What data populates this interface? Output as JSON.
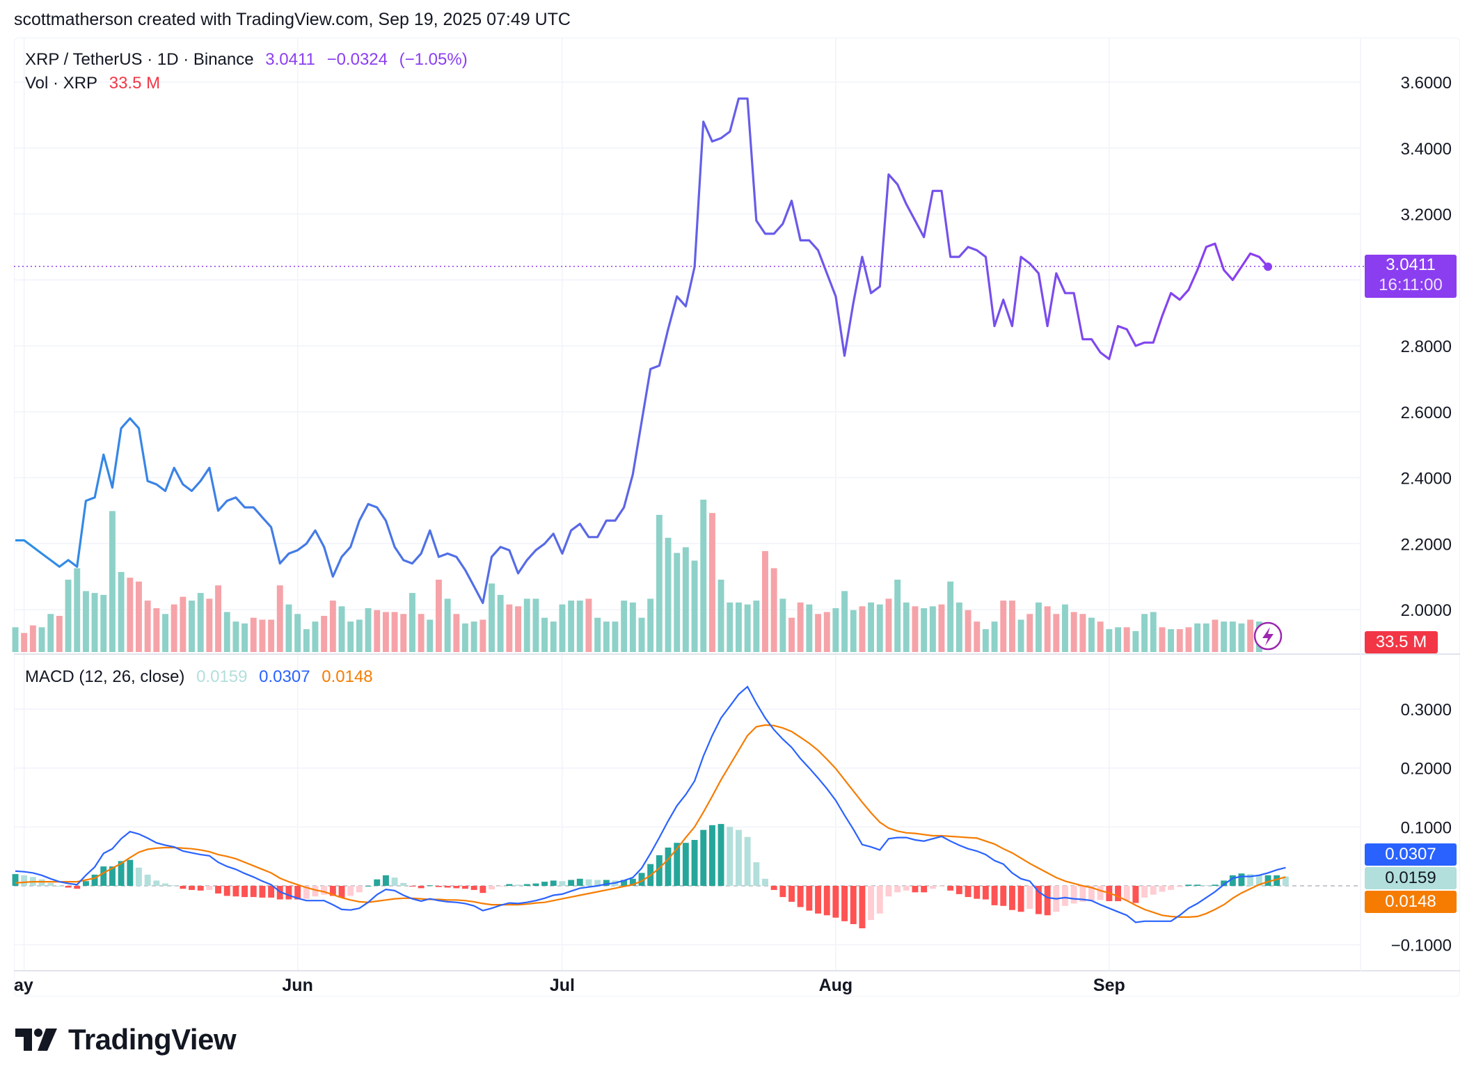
{
  "header": {
    "attribution": "scottmatherson created with TradingView.com, Sep 19, 2025 07:49 UTC"
  },
  "legend": {
    "symbol": "XRP / TetherUS · 1D · Binance",
    "last": "3.0411",
    "change": "−0.0324",
    "change_pct": "(−1.05%)",
    "vol_label": "Vol · XRP",
    "vol_value": "33.5 M",
    "macd_label": "MACD (12, 26, close)",
    "macd_hist": "0.0159",
    "macd_line": "0.0307",
    "macd_signal": "0.0148"
  },
  "price_axis": {
    "ticks": [
      "3.6000",
      "3.4000",
      "3.2000",
      "3.0000",
      "2.8000",
      "2.6000",
      "2.4000",
      "2.2000",
      "2.0000"
    ]
  },
  "macd_axis": {
    "ticks": [
      "0.3000",
      "0.2000",
      "0.1000",
      "−0.1000"
    ]
  },
  "time_axis": {
    "labels": [
      "ay",
      "Jun",
      "Jul",
      "Aug",
      "Sep"
    ]
  },
  "tags": {
    "price": "3.0411",
    "countdown": "16:11:00",
    "volume": "33.5 M",
    "macd_line": "0.0307",
    "macd_hist": "0.0159",
    "macd_signal": "0.0148"
  },
  "colors": {
    "price_line_start": "#2d8ee6",
    "price_line_end": "#8b3ef0",
    "vol_up": "#8ed1c8",
    "vol_down": "#f5a3a8",
    "macd_line": "#2962ff",
    "signal_line": "#f57c00",
    "hist_pos_strong": "#26a69a",
    "hist_pos_weak": "#b2dfdb",
    "hist_neg_strong": "#ff5252",
    "hist_neg_weak": "#ffcdd2",
    "price_tag": "#8b3ef0",
    "vol_tag": "#f23645"
  },
  "logo": {
    "text": "TradingView"
  },
  "chart_data": [
    {
      "type": "line",
      "title": "XRP / TetherUS · 1D · Binance",
      "x_start": "2025-04-30",
      "x_end": "2025-09-19",
      "y": [
        2.21,
        2.21,
        2.19,
        2.17,
        2.15,
        2.13,
        2.15,
        2.13,
        2.33,
        2.34,
        2.47,
        2.37,
        2.55,
        2.58,
        2.55,
        2.39,
        2.38,
        2.36,
        2.43,
        2.38,
        2.36,
        2.39,
        2.43,
        2.3,
        2.33,
        2.34,
        2.31,
        2.31,
        2.28,
        2.25,
        2.14,
        2.17,
        2.18,
        2.2,
        2.24,
        2.19,
        2.1,
        2.16,
        2.19,
        2.27,
        2.32,
        2.31,
        2.27,
        2.19,
        2.15,
        2.14,
        2.17,
        2.24,
        2.16,
        2.17,
        2.16,
        2.12,
        2.07,
        2.02,
        2.16,
        2.19,
        2.18,
        2.11,
        2.15,
        2.18,
        2.2,
        2.23,
        2.17,
        2.24,
        2.26,
        2.22,
        2.22,
        2.27,
        2.27,
        2.31,
        2.41,
        2.57,
        2.73,
        2.74,
        2.85,
        2.95,
        2.92,
        3.04,
        3.48,
        3.42,
        3.43,
        3.45,
        3.55,
        3.55,
        3.18,
        3.14,
        3.14,
        3.17,
        3.24,
        3.12,
        3.12,
        3.09,
        3.02,
        2.95,
        2.77,
        2.93,
        3.07,
        2.96,
        2.98,
        3.32,
        3.29,
        3.23,
        3.18,
        3.13,
        3.27,
        3.27,
        3.07,
        3.07,
        3.1,
        3.09,
        3.07,
        2.86,
        2.94,
        2.86,
        3.07,
        3.05,
        3.02,
        2.86,
        3.02,
        2.96,
        2.96,
        2.82,
        2.82,
        2.78,
        2.76,
        2.86,
        2.85,
        2.8,
        2.81,
        2.81,
        2.89,
        2.96,
        2.94,
        2.97,
        3.03,
        3.1,
        3.11,
        3.03,
        3.0,
        3.04,
        3.08,
        3.07,
        3.04
      ],
      "ylim": [
        1.86,
        3.7
      ],
      "y_ticks": [
        2.0,
        2.2,
        2.4,
        2.6,
        2.8,
        3.0,
        3.2,
        3.4,
        3.6
      ],
      "last": 3.0411
    },
    {
      "type": "bar",
      "title": "Vol · XRP",
      "values": [
        1.3,
        1.0,
        1.4,
        1.3,
        2.0,
        1.9,
        3.8,
        4.4,
        3.2,
        3.1,
        3.0,
        7.4,
        4.2,
        3.9,
        3.7,
        2.7,
        2.3,
        2.0,
        2.5,
        2.9,
        2.7,
        3.1,
        2.8,
        3.5,
        2.1,
        1.6,
        1.5,
        1.8,
        1.7,
        1.7,
        3.5,
        2.5,
        2.0,
        1.2,
        1.6,
        1.9,
        2.7,
        2.4,
        1.6,
        1.7,
        2.3,
        2.2,
        2.1,
        2.1,
        2.0,
        3.1,
        2.0,
        1.7,
        3.8,
        2.8,
        2.0,
        1.5,
        1.6,
        1.7,
        3.6,
        3.0,
        2.5,
        2.4,
        2.8,
        2.8,
        1.8,
        1.6,
        2.5,
        2.7,
        2.7,
        2.8,
        1.8,
        1.6,
        1.6,
        2.7,
        2.6,
        1.8,
        2.8,
        7.2,
        6.0,
        5.2,
        5.5,
        4.8,
        8.0,
        7.3,
        3.8,
        2.6,
        2.6,
        2.5,
        2.7,
        5.3,
        4.4,
        2.8,
        1.8,
        2.6,
        2.5,
        2.0,
        2.1,
        2.3,
        3.2,
        2.2,
        2.4,
        2.6,
        2.5,
        2.8,
        3.8,
        2.6,
        2.4,
        2.3,
        2.4,
        2.5,
        3.7,
        2.6,
        2.2,
        1.6,
        1.2,
        1.6,
        2.7,
        2.7,
        1.7,
        2.0,
        2.6,
        2.4,
        2.0,
        2.5,
        2.1,
        2.0,
        1.8,
        1.6,
        1.2,
        1.3,
        1.3,
        1.1,
        2.0,
        2.1,
        1.3,
        1.2,
        1.2,
        1.3,
        1.5,
        1.5,
        1.7,
        1.6,
        1.6,
        1.5,
        1.7,
        1.6
      ],
      "direction": [
        "up",
        "down",
        "down",
        "up",
        "up",
        "down",
        "up",
        "up",
        "up",
        "up",
        "up",
        "up",
        "up",
        "down",
        "down",
        "down",
        "down",
        "up",
        "down",
        "down",
        "up",
        "up",
        "down",
        "down",
        "up",
        "up",
        "up",
        "down",
        "down",
        "down",
        "down",
        "up",
        "up",
        "up",
        "up",
        "down",
        "down",
        "up",
        "up",
        "up",
        "up",
        "down",
        "down",
        "down",
        "down",
        "up",
        "down",
        "up",
        "down",
        "up",
        "down",
        "up",
        "up",
        "down",
        "up",
        "up",
        "down",
        "down",
        "up",
        "up",
        "up",
        "up",
        "up",
        "up",
        "up",
        "down",
        "up",
        "up",
        "up",
        "up",
        "up",
        "up",
        "up",
        "up",
        "up",
        "up",
        "up",
        "up",
        "up",
        "down",
        "up",
        "up",
        "up",
        "up",
        "up",
        "down",
        "down",
        "up",
        "down",
        "down",
        "up",
        "down",
        "down",
        "up",
        "up",
        "up",
        "down",
        "up",
        "up",
        "down",
        "up",
        "up",
        "down",
        "up",
        "up",
        "down",
        "up",
        "up",
        "down",
        "down",
        "up",
        "up",
        "down",
        "down",
        "up",
        "down",
        "up",
        "down",
        "down",
        "up",
        "down",
        "down",
        "up",
        "down",
        "up",
        "up",
        "down",
        "up",
        "up",
        "up",
        "down",
        "up",
        "down",
        "down",
        "up",
        "up",
        "down",
        "up",
        "up",
        "up",
        "down",
        "up",
        "up",
        "down",
        "up",
        "down"
      ],
      "last": 33.5
    },
    {
      "type": "line",
      "title": "MACD (12, 26, close)",
      "series": [
        {
          "name": "MACD",
          "values": [
            0.025,
            0.024,
            0.022,
            0.018,
            0.012,
            0.007,
            0.004,
            0.002,
            0.018,
            0.032,
            0.055,
            0.063,
            0.08,
            0.092,
            0.088,
            0.081,
            0.073,
            0.069,
            0.066,
            0.059,
            0.056,
            0.053,
            0.051,
            0.04,
            0.033,
            0.028,
            0.021,
            0.015,
            0.008,
            0.002,
            -0.01,
            -0.016,
            -0.021,
            -0.025,
            -0.025,
            -0.025,
            -0.032,
            -0.04,
            -0.041,
            -0.038,
            -0.028,
            -0.015,
            -0.006,
            -0.008,
            -0.016,
            -0.022,
            -0.026,
            -0.022,
            -0.025,
            -0.027,
            -0.028,
            -0.03,
            -0.034,
            -0.042,
            -0.038,
            -0.033,
            -0.029,
            -0.03,
            -0.028,
            -0.025,
            -0.021,
            -0.016,
            -0.014,
            -0.009,
            -0.004,
            -0.002,
            0.0,
            0.003,
            0.005,
            0.009,
            0.014,
            0.03,
            0.055,
            0.082,
            0.11,
            0.136,
            0.155,
            0.178,
            0.22,
            0.255,
            0.285,
            0.305,
            0.325,
            0.338,
            0.31,
            0.285,
            0.265,
            0.249,
            0.235,
            0.216,
            0.2,
            0.183,
            0.165,
            0.145,
            0.12,
            0.096,
            0.07,
            0.066,
            0.061,
            0.08,
            0.082,
            0.082,
            0.078,
            0.076,
            0.08,
            0.084,
            0.076,
            0.069,
            0.063,
            0.059,
            0.053,
            0.043,
            0.037,
            0.022,
            0.012,
            0.008,
            -0.01,
            -0.02,
            -0.022,
            -0.02,
            -0.022,
            -0.023,
            -0.025,
            -0.032,
            -0.038,
            -0.044,
            -0.05,
            -0.062,
            -0.06,
            -0.06,
            -0.06,
            -0.06,
            -0.05,
            -0.038,
            -0.03,
            -0.02,
            -0.01,
            0.002,
            0.013,
            0.016,
            0.016,
            0.018,
            0.022,
            0.027,
            0.031
          ]
        },
        {
          "name": "Signal",
          "values": [
            0.005,
            0.006,
            0.007,
            0.007,
            0.007,
            0.007,
            0.007,
            0.007,
            0.01,
            0.013,
            0.022,
            0.03,
            0.038,
            0.048,
            0.057,
            0.062,
            0.064,
            0.065,
            0.065,
            0.064,
            0.063,
            0.061,
            0.058,
            0.053,
            0.05,
            0.046,
            0.04,
            0.034,
            0.028,
            0.022,
            0.013,
            0.007,
            0.002,
            -0.003,
            -0.007,
            -0.01,
            -0.015,
            -0.02,
            -0.024,
            -0.027,
            -0.028,
            -0.026,
            -0.024,
            -0.022,
            -0.021,
            -0.021,
            -0.022,
            -0.023,
            -0.023,
            -0.024,
            -0.024,
            -0.025,
            -0.027,
            -0.03,
            -0.032,
            -0.032,
            -0.032,
            -0.032,
            -0.031,
            -0.029,
            -0.028,
            -0.025,
            -0.022,
            -0.019,
            -0.016,
            -0.013,
            -0.01,
            -0.007,
            -0.004,
            -0.001,
            0.002,
            0.008,
            0.018,
            0.03,
            0.045,
            0.063,
            0.082,
            0.1,
            0.125,
            0.152,
            0.18,
            0.205,
            0.23,
            0.255,
            0.27,
            0.273,
            0.272,
            0.268,
            0.262,
            0.252,
            0.242,
            0.23,
            0.215,
            0.199,
            0.18,
            0.161,
            0.142,
            0.124,
            0.108,
            0.098,
            0.093,
            0.09,
            0.089,
            0.087,
            0.085,
            0.085,
            0.084,
            0.083,
            0.082,
            0.081,
            0.076,
            0.071,
            0.063,
            0.056,
            0.047,
            0.038,
            0.03,
            0.022,
            0.014,
            0.008,
            0.004,
            0.0,
            -0.003,
            -0.008,
            -0.012,
            -0.018,
            -0.025,
            -0.033,
            -0.04,
            -0.045,
            -0.05,
            -0.052,
            -0.053,
            -0.053,
            -0.052,
            -0.047,
            -0.04,
            -0.032,
            -0.021,
            -0.012,
            -0.005,
            0.002,
            0.007,
            0.011,
            0.015
          ]
        },
        {
          "name": "Histogram",
          "values": [
            0.02,
            0.018,
            0.015,
            0.011,
            0.005,
            0.0,
            -0.003,
            -0.005,
            0.008,
            0.019,
            0.033,
            0.033,
            0.042,
            0.044,
            0.031,
            0.019,
            0.009,
            0.004,
            0.001,
            -0.005,
            -0.007,
            -0.008,
            -0.007,
            -0.013,
            -0.017,
            -0.018,
            -0.019,
            -0.019,
            -0.02,
            -0.02,
            -0.023,
            -0.023,
            -0.023,
            -0.022,
            -0.018,
            -0.015,
            -0.017,
            -0.02,
            -0.017,
            -0.011,
            0.0,
            0.011,
            0.018,
            0.014,
            0.005,
            -0.001,
            -0.004,
            0.001,
            -0.002,
            -0.003,
            -0.004,
            -0.005,
            -0.007,
            -0.012,
            -0.006,
            -0.001,
            0.003,
            0.002,
            0.003,
            0.004,
            0.007,
            0.009,
            0.008,
            0.01,
            0.012,
            0.011,
            0.01,
            0.01,
            0.009,
            0.01,
            0.012,
            0.022,
            0.037,
            0.052,
            0.065,
            0.073,
            0.073,
            0.078,
            0.095,
            0.103,
            0.105,
            0.1,
            0.095,
            0.083,
            0.04,
            0.012,
            -0.007,
            -0.019,
            -0.027,
            -0.036,
            -0.042,
            -0.047,
            -0.05,
            -0.054,
            -0.06,
            -0.065,
            -0.072,
            -0.058,
            -0.047,
            -0.018,
            -0.011,
            -0.008,
            -0.011,
            -0.011,
            -0.005,
            -0.001,
            -0.008,
            -0.014,
            -0.019,
            -0.022,
            -0.023,
            -0.033,
            -0.034,
            -0.041,
            -0.044,
            -0.039,
            -0.048,
            -0.05,
            -0.044,
            -0.034,
            -0.03,
            -0.027,
            -0.025,
            -0.024,
            -0.026,
            -0.026,
            -0.025,
            -0.029,
            -0.02,
            -0.015,
            -0.01,
            -0.007,
            -0.002,
            0.002,
            0.002,
            0.001,
            0.002,
            0.009,
            0.018,
            0.021,
            0.02,
            0.018,
            0.018,
            0.018,
            0.016
          ]
        }
      ],
      "ylim": [
        -0.12,
        0.36
      ],
      "y_ticks": [
        -0.1,
        0.1,
        0.2,
        0.3
      ]
    }
  ]
}
